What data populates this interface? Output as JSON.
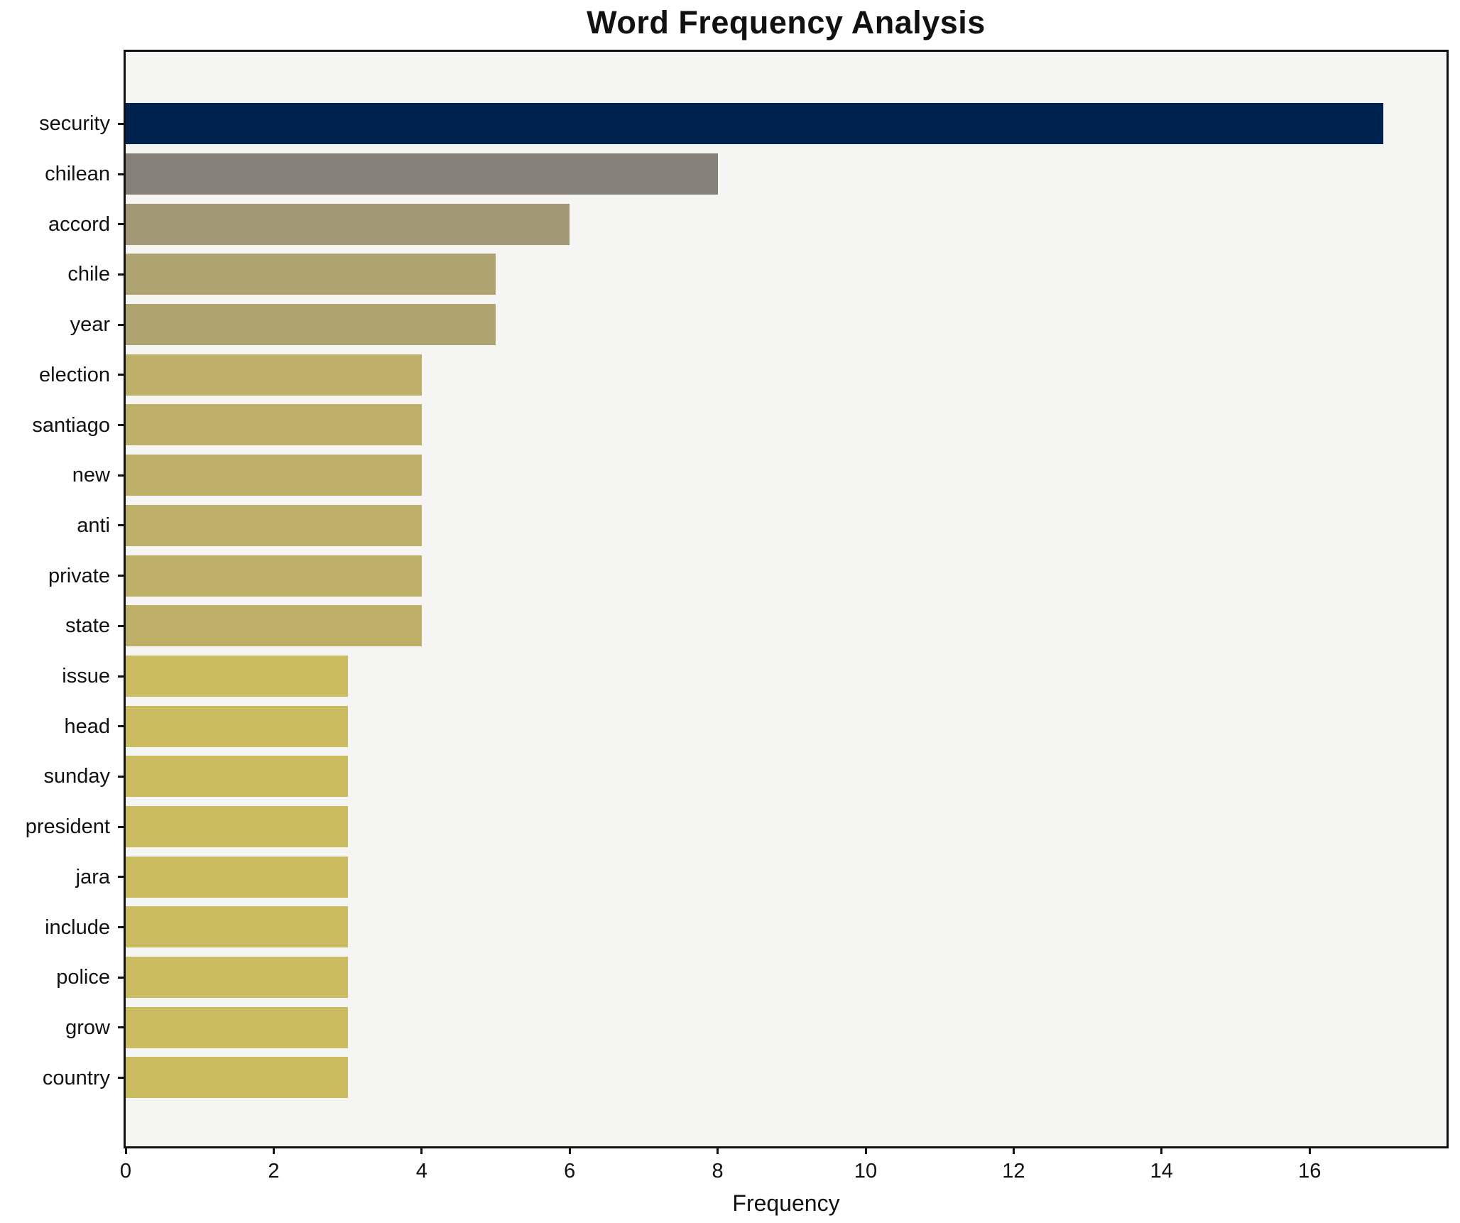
{
  "figure": {
    "title": "Word Frequency Analysis",
    "xlabel": "Frequency"
  },
  "chart_data": {
    "type": "bar",
    "orientation": "horizontal",
    "title": "Word Frequency Analysis",
    "xlabel": "Frequency",
    "ylabel": "",
    "categories": [
      "security",
      "chilean",
      "accord",
      "chile",
      "year",
      "election",
      "santiago",
      "new",
      "anti",
      "private",
      "state",
      "issue",
      "head",
      "sunday",
      "president",
      "jara",
      "include",
      "police",
      "grow",
      "country"
    ],
    "values": [
      17,
      8,
      6,
      5,
      5,
      4,
      4,
      4,
      4,
      4,
      4,
      3,
      3,
      3,
      3,
      3,
      3,
      3,
      3,
      3
    ],
    "bar_colors": [
      "#00224e",
      "#858078",
      "#a39876",
      "#afa370",
      "#afa370",
      "#beaf69",
      "#beaf69",
      "#beaf69",
      "#beaf69",
      "#beaf69",
      "#beaf69",
      "#ccbc61",
      "#ccbc61",
      "#ccbc61",
      "#ccbc61",
      "#ccbc61",
      "#ccbc61",
      "#ccbc61",
      "#ccbc61",
      "#ccbc61"
    ],
    "xlim": [
      0,
      17.85
    ],
    "xticks": [
      0,
      2,
      4,
      6,
      8,
      10,
      12,
      14,
      16
    ],
    "grid": false,
    "legend_position": "none",
    "plot_background": "#f5f5f3",
    "figure_background": "#ffffff",
    "spine_color": "#111111",
    "text_color": "#111111"
  }
}
